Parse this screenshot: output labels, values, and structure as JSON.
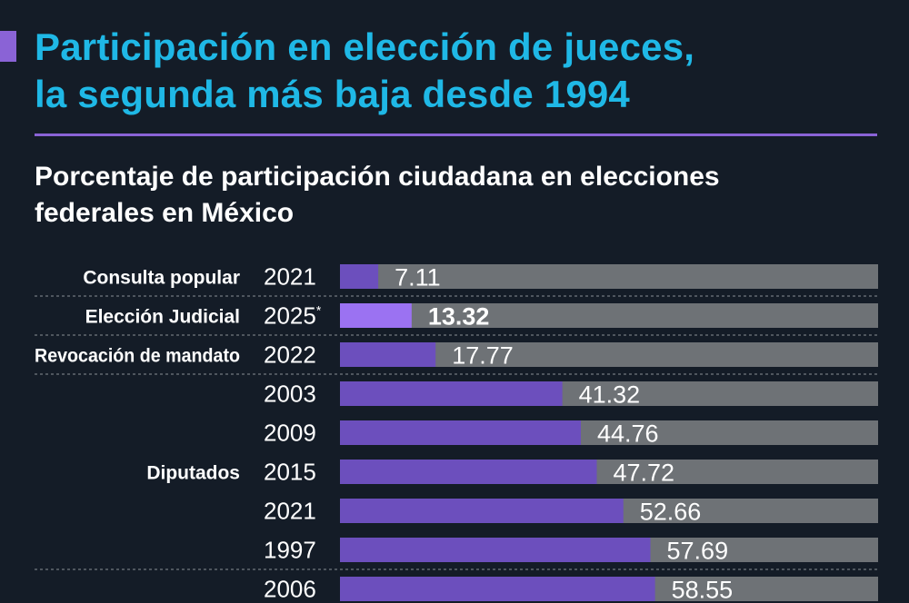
{
  "header": {
    "title_line1": "Participación en elección de jueces,",
    "title_line2": "la segunda más baja desde 1994",
    "subtitle_line1": "Porcentaje de participación ciudadana en elecciones",
    "subtitle_line2": "federales en México"
  },
  "colors": {
    "background": "#141c27",
    "title": "#1fb8e6",
    "accent": "#8a63d6",
    "bar": "#6c4fbd",
    "bar_highlight": "#9b72f2",
    "track": "#6e7276",
    "text": "#ffffff"
  },
  "chart_data": {
    "type": "bar",
    "orientation": "horizontal",
    "title": "Porcentaje de participación ciudadana en elecciones federales en México",
    "xlim": [
      0,
      100
    ],
    "groups": [
      {
        "label": "Consulta popular",
        "rows": [
          0
        ]
      },
      {
        "label": "Elección Judicial",
        "rows": [
          1
        ]
      },
      {
        "label": "Revocación de mandato",
        "rows": [
          2
        ]
      },
      {
        "label": "Diputados",
        "rows": [
          3,
          4,
          5,
          6,
          7,
          8
        ]
      }
    ],
    "rows": [
      {
        "year": "2021",
        "value": 7.11,
        "label": "7.11",
        "highlight": false
      },
      {
        "year": "2025",
        "note": "*",
        "value": 13.32,
        "label": "13.32",
        "highlight": true
      },
      {
        "year": "2022",
        "value": 17.77,
        "label": "17.77",
        "highlight": false
      },
      {
        "year": "2003",
        "value": 41.32,
        "label": "41.32",
        "highlight": false
      },
      {
        "year": "2009",
        "value": 44.76,
        "label": "44.76",
        "highlight": false
      },
      {
        "year": "2015",
        "value": 47.72,
        "label": "47.72",
        "highlight": false
      },
      {
        "year": "2021",
        "value": 52.66,
        "label": "52.66",
        "highlight": false
      },
      {
        "year": "1997",
        "value": 57.69,
        "label": "57.69",
        "highlight": false
      },
      {
        "year": "2006",
        "value": 58.55,
        "label": "58.55",
        "highlight": false
      }
    ]
  }
}
